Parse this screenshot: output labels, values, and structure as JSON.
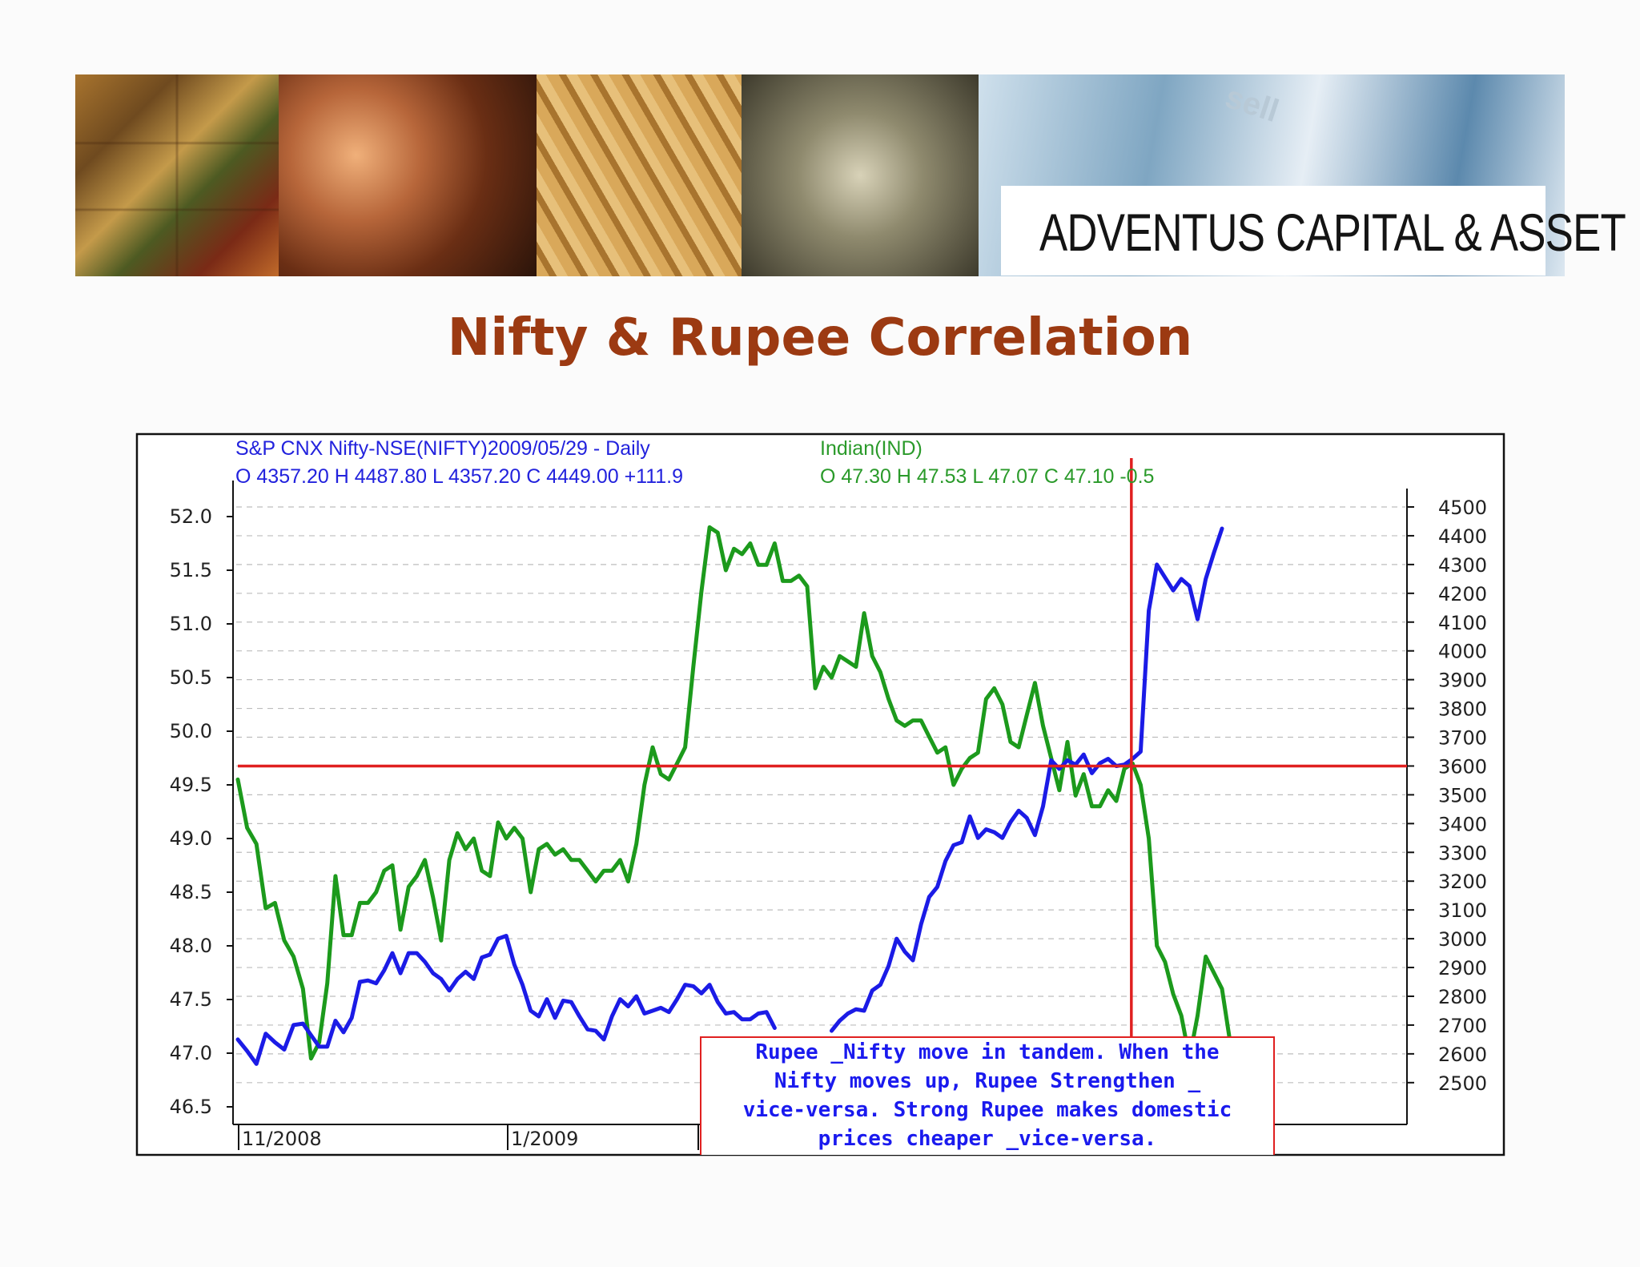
{
  "slide": {
    "brand": "ADVENTUS CAPITAL & ASSET",
    "title": "Nifty & Rupee Correlation",
    "banner_keycap": "sell"
  },
  "chart_data": {
    "type": "line",
    "header_left": {
      "line1": "S&P CNX Nifty-NSE(NIFTY)2009/05/29  - Daily",
      "line2": "O 4357.20 H 4487.80 L 4357.20 C 4449.00  +111.9",
      "color": "#2222dd"
    },
    "header_right": {
      "line1": "Indian(IND)",
      "line2": "O 47.30 H 47.53 L 47.07 C 47.10  -0.5",
      "color": "#2a9a2a"
    },
    "x_ticks": [
      "11/2008",
      "1/2009"
    ],
    "x_range": [
      0,
      100
    ],
    "left_axis": {
      "ticks": [
        "52.0",
        "51.5",
        "51.0",
        "50.5",
        "50.0",
        "49.5",
        "49.0",
        "48.5",
        "48.0",
        "47.5",
        "47.0",
        "46.5"
      ],
      "ylim": [
        46.5,
        52.0
      ]
    },
    "right_axis": {
      "ticks": [
        "4500",
        "4400",
        "4300",
        "4200",
        "4100",
        "4000",
        "3900",
        "3800",
        "3700",
        "3600",
        "3500",
        "3400",
        "3300",
        "3200",
        "3100",
        "3000",
        "2900",
        "2800",
        "2700",
        "2600",
        "2500"
      ],
      "ylim": [
        2500,
        4500
      ]
    },
    "grid": true,
    "series": [
      {
        "name": "Indian(IND)",
        "axis": "left",
        "color": "#1c9a1c",
        "points": [
          [
            0,
            49.55
          ],
          [
            0.8,
            49.1
          ],
          [
            1.6,
            48.95
          ],
          [
            2.4,
            48.35
          ],
          [
            3.2,
            48.4
          ],
          [
            4,
            48.05
          ],
          [
            4.8,
            47.9
          ],
          [
            5.6,
            47.6
          ],
          [
            6.3,
            46.95
          ],
          [
            7,
            47.1
          ],
          [
            7.7,
            47.65
          ],
          [
            8.4,
            48.65
          ],
          [
            9.1,
            48.1
          ],
          [
            9.8,
            48.1
          ],
          [
            10.5,
            48.4
          ],
          [
            11.2,
            48.4
          ],
          [
            11.9,
            48.5
          ],
          [
            12.6,
            48.7
          ],
          [
            13.3,
            48.75
          ],
          [
            14,
            48.15
          ],
          [
            14.7,
            48.55
          ],
          [
            15.4,
            48.65
          ],
          [
            16.1,
            48.8
          ],
          [
            16.8,
            48.45
          ],
          [
            17.5,
            48.05
          ],
          [
            18.2,
            48.8
          ],
          [
            18.9,
            49.05
          ],
          [
            19.6,
            48.9
          ],
          [
            20.3,
            49.0
          ],
          [
            21,
            48.7
          ],
          [
            21.7,
            48.65
          ],
          [
            22.4,
            49.15
          ],
          [
            23.1,
            49.0
          ],
          [
            23.8,
            49.1
          ],
          [
            24.5,
            49.0
          ],
          [
            25.2,
            48.5
          ],
          [
            25.9,
            48.9
          ],
          [
            26.6,
            48.95
          ],
          [
            27.3,
            48.85
          ],
          [
            28,
            48.9
          ],
          [
            28.7,
            48.8
          ],
          [
            29.4,
            48.8
          ],
          [
            30.1,
            48.7
          ],
          [
            30.8,
            48.6
          ],
          [
            31.5,
            48.7
          ],
          [
            32.2,
            48.7
          ],
          [
            32.9,
            48.8
          ],
          [
            33.6,
            48.6
          ],
          [
            34.3,
            48.95
          ],
          [
            35,
            49.5
          ],
          [
            35.7,
            49.85
          ],
          [
            36.4,
            49.6
          ],
          [
            37.1,
            49.55
          ],
          [
            37.8,
            49.7
          ],
          [
            38.5,
            49.85
          ],
          [
            39.2,
            50.6
          ],
          [
            39.9,
            51.3
          ],
          [
            40.6,
            51.9
          ],
          [
            41.3,
            51.85
          ],
          [
            42,
            51.5
          ],
          [
            42.7,
            51.7
          ],
          [
            43.4,
            51.65
          ],
          [
            44.1,
            51.75
          ],
          [
            44.8,
            51.55
          ],
          [
            45.5,
            51.55
          ],
          [
            46.2,
            51.75
          ],
          [
            46.9,
            51.4
          ],
          [
            47.6,
            51.4
          ],
          [
            48.3,
            51.45
          ],
          [
            49,
            51.35
          ],
          [
            49.7,
            50.4
          ],
          [
            50.4,
            50.6
          ],
          [
            51.1,
            50.5
          ],
          [
            51.8,
            50.7
          ],
          [
            52.5,
            50.65
          ],
          [
            53.2,
            50.6
          ],
          [
            53.9,
            51.1
          ],
          [
            54.6,
            50.7
          ],
          [
            55.3,
            50.55
          ],
          [
            56,
            50.3
          ],
          [
            56.7,
            50.1
          ],
          [
            57.4,
            50.05
          ],
          [
            58.1,
            50.1
          ],
          [
            58.8,
            50.1
          ],
          [
            59.5,
            49.95
          ],
          [
            60.2,
            49.8
          ],
          [
            60.9,
            49.85
          ],
          [
            61.6,
            49.5
          ],
          [
            62.3,
            49.65
          ],
          [
            63,
            49.75
          ],
          [
            63.7,
            49.8
          ],
          [
            64.4,
            50.3
          ],
          [
            65.1,
            50.4
          ],
          [
            65.8,
            50.25
          ],
          [
            66.5,
            49.9
          ],
          [
            67.2,
            49.85
          ],
          [
            67.9,
            50.15
          ],
          [
            68.6,
            50.45
          ],
          [
            69.3,
            50.05
          ],
          [
            70,
            49.75
          ],
          [
            70.7,
            49.45
          ],
          [
            71.4,
            49.9
          ],
          [
            72.1,
            49.4
          ],
          [
            72.8,
            49.6
          ],
          [
            73.5,
            49.3
          ],
          [
            74.2,
            49.3
          ],
          [
            74.9,
            49.45
          ],
          [
            75.6,
            49.35
          ],
          [
            76.3,
            49.65
          ],
          [
            77,
            49.7
          ],
          [
            77.7,
            49.5
          ],
          [
            78.4,
            49.0
          ],
          [
            79.1,
            48.0
          ],
          [
            79.8,
            47.85
          ],
          [
            80.5,
            47.55
          ],
          [
            81.2,
            47.35
          ],
          [
            81.9,
            46.95
          ],
          [
            82.6,
            47.35
          ],
          [
            83.3,
            47.9
          ],
          [
            84,
            47.75
          ],
          [
            84.7,
            47.6
          ],
          [
            85.4,
            47.1
          ]
        ]
      },
      {
        "name": "S&P CNX Nifty-NSE(NIFTY)",
        "axis": "right",
        "color": "#1b1be6",
        "points": [
          [
            0,
            2650
          ],
          [
            0.8,
            2610
          ],
          [
            1.6,
            2565
          ],
          [
            2.4,
            2670
          ],
          [
            3.2,
            2640
          ],
          [
            4,
            2615
          ],
          [
            4.8,
            2700
          ],
          [
            5.6,
            2705
          ],
          [
            6.3,
            2665
          ],
          [
            7,
            2625
          ],
          [
            7.7,
            2625
          ],
          [
            8.4,
            2715
          ],
          [
            9.1,
            2675
          ],
          [
            9.8,
            2725
          ],
          [
            10.5,
            2850
          ],
          [
            11.2,
            2855
          ],
          [
            11.9,
            2845
          ],
          [
            12.6,
            2890
          ],
          [
            13.3,
            2950
          ],
          [
            14,
            2880
          ],
          [
            14.7,
            2950
          ],
          [
            15.4,
            2950
          ],
          [
            16.1,
            2920
          ],
          [
            16.8,
            2880
          ],
          [
            17.5,
            2860
          ],
          [
            18.2,
            2820
          ],
          [
            18.9,
            2860
          ],
          [
            19.6,
            2885
          ],
          [
            20.3,
            2860
          ],
          [
            21,
            2935
          ],
          [
            21.7,
            2945
          ],
          [
            22.4,
            3000
          ],
          [
            23.1,
            3010
          ],
          [
            23.8,
            2910
          ],
          [
            24.5,
            2840
          ],
          [
            25.2,
            2750
          ],
          [
            25.9,
            2730
          ],
          [
            26.6,
            2790
          ],
          [
            27.3,
            2725
          ],
          [
            28,
            2785
          ],
          [
            28.7,
            2780
          ],
          [
            29.4,
            2730
          ],
          [
            30.1,
            2685
          ],
          [
            30.8,
            2680
          ],
          [
            31.5,
            2650
          ],
          [
            32.2,
            2730
          ],
          [
            32.9,
            2790
          ],
          [
            33.6,
            2765
          ],
          [
            34.3,
            2800
          ],
          [
            35,
            2740
          ],
          [
            35.7,
            2750
          ],
          [
            36.4,
            2760
          ],
          [
            37.1,
            2745
          ],
          [
            37.8,
            2790
          ],
          [
            38.5,
            2840
          ],
          [
            39.2,
            2835
          ],
          [
            39.9,
            2810
          ],
          [
            40.6,
            2840
          ],
          [
            41.3,
            2780
          ],
          [
            42,
            2740
          ],
          [
            42.7,
            2745
          ],
          [
            43.4,
            2720
          ],
          [
            44.1,
            2720
          ],
          [
            44.8,
            2740
          ],
          [
            45.5,
            2745
          ],
          [
            46.2,
            2690
          ]
        ]
      },
      {
        "name": "S&P CNX Nifty-NSE(NIFTY)",
        "axis": "right",
        "color": "#1b1be6",
        "points": [
          [
            51.1,
            2680
          ],
          [
            51.8,
            2715
          ],
          [
            52.5,
            2740
          ],
          [
            53.2,
            2755
          ],
          [
            53.9,
            2750
          ],
          [
            54.6,
            2820
          ],
          [
            55.3,
            2840
          ],
          [
            56,
            2905
          ],
          [
            56.7,
            3000
          ],
          [
            57.4,
            2955
          ],
          [
            58.1,
            2925
          ],
          [
            58.8,
            3050
          ],
          [
            59.5,
            3145
          ],
          [
            60.2,
            3180
          ],
          [
            60.9,
            3270
          ],
          [
            61.6,
            3325
          ],
          [
            62.3,
            3335
          ],
          [
            63,
            3425
          ],
          [
            63.7,
            3350
          ],
          [
            64.4,
            3380
          ],
          [
            65.1,
            3370
          ],
          [
            65.8,
            3350
          ],
          [
            66.5,
            3405
          ],
          [
            67.2,
            3445
          ],
          [
            67.9,
            3420
          ],
          [
            68.6,
            3360
          ],
          [
            69.3,
            3460
          ],
          [
            70,
            3620
          ],
          [
            70.7,
            3590
          ],
          [
            71.4,
            3620
          ],
          [
            72.1,
            3605
          ],
          [
            72.8,
            3640
          ],
          [
            73.5,
            3575
          ],
          [
            74.2,
            3610
          ],
          [
            74.9,
            3625
          ],
          [
            75.6,
            3600
          ],
          [
            76.3,
            3605
          ],
          [
            77,
            3625
          ],
          [
            77.7,
            3650
          ],
          [
            78.4,
            4140
          ],
          [
            79.1,
            4300
          ],
          [
            79.8,
            4255
          ],
          [
            80.5,
            4210
          ],
          [
            81.2,
            4250
          ],
          [
            81.9,
            4225
          ],
          [
            82.6,
            4110
          ],
          [
            83.3,
            4250
          ],
          [
            84,
            4340
          ],
          [
            84.7,
            4425
          ]
        ]
      }
    ],
    "annotations": [
      {
        "type": "hline",
        "axis": "right",
        "value": 3600,
        "color": "#e02020"
      },
      {
        "type": "vline",
        "x": 76.9,
        "color": "#e02020"
      }
    ],
    "note": [
      "Rupee _Nifty move in tandem. When the",
      "Nifty moves up, Rupee Strengthen _",
      "vice-versa. Strong Rupee makes domestic",
      "prices cheaper _vice-versa."
    ]
  }
}
